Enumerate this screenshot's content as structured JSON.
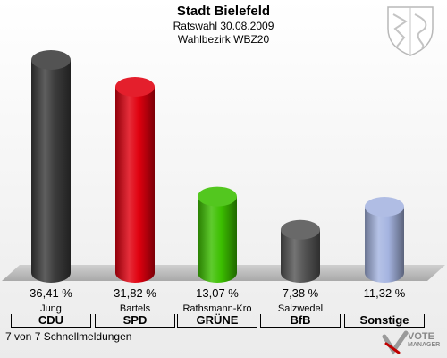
{
  "header": {
    "title": "Stadt Bielefeld",
    "subtitle1": "Ratswahl 30.08.2009",
    "subtitle2": "Wahlbezirk WBZ20"
  },
  "footer": {
    "note": "7 von 7 Schnellmeldungen",
    "logo_line1": "VOTE",
    "logo_line2": "MANAGER"
  },
  "colors": {
    "CDU": "#3c3c3c",
    "SPD": "#e0000f",
    "GRÜNE": "#3cbf00",
    "BfB": "#555555",
    "Sonstige": "#a5b4e0"
  },
  "chart_data": {
    "type": "bar",
    "title": "Stadt Bielefeld",
    "categories": [
      "CDU",
      "SPD",
      "GRÜNE",
      "BfB",
      "Sonstige"
    ],
    "candidates": [
      "Jung",
      "Bartels",
      "Rathsmann-Kro",
      "Salzwedel",
      ""
    ],
    "values": [
      36.41,
      31.82,
      13.07,
      7.38,
      11.32
    ],
    "value_labels": [
      "36,41 %",
      "31,82 %",
      "13,07 %",
      "7,38 %",
      "11,32 %"
    ],
    "ylim": [
      0,
      36.41
    ]
  }
}
